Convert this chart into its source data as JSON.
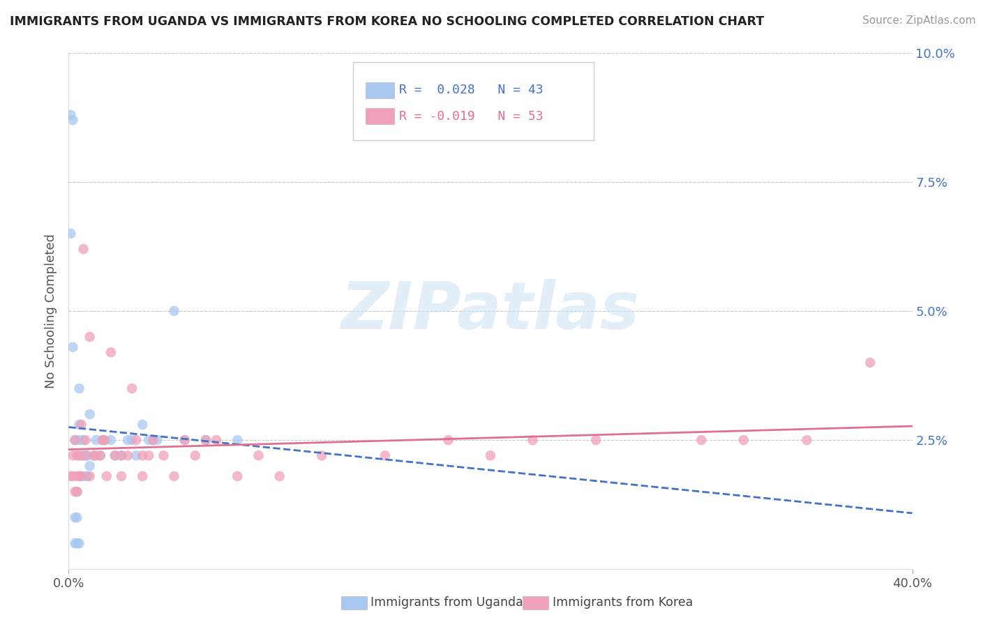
{
  "title": "IMMIGRANTS FROM UGANDA VS IMMIGRANTS FROM KOREA NO SCHOOLING COMPLETED CORRELATION CHART",
  "source": "Source: ZipAtlas.com",
  "ylabel": "No Schooling Completed",
  "xlim": [
    0.0,
    0.4
  ],
  "ylim": [
    0.0,
    0.1
  ],
  "xtick_vals": [
    0.0,
    0.4
  ],
  "yticks_right": [
    0.0,
    0.025,
    0.05,
    0.075,
    0.1
  ],
  "ytick_labels_right": [
    "",
    "2.5%",
    "5.0%",
    "7.5%",
    "10.0%"
  ],
  "legend_line1": "R =  0.028   N = 43",
  "legend_line2": "R = -0.019   N = 53",
  "legend_label_uganda": "Immigrants from Uganda",
  "legend_label_korea": "Immigrants from Korea",
  "color_uganda": "#A8C8F0",
  "color_korea": "#F0A0B8",
  "line_color_uganda": "#4472C4",
  "line_color_korea": "#E07090",
  "watermark_text": "ZIPatlas",
  "uganda_x": [
    0.001,
    0.002,
    0.001,
    0.003,
    0.002,
    0.003,
    0.003,
    0.004,
    0.004,
    0.004,
    0.005,
    0.005,
    0.005,
    0.005,
    0.006,
    0.006,
    0.007,
    0.007,
    0.008,
    0.008,
    0.009,
    0.009,
    0.01,
    0.01,
    0.012,
    0.013,
    0.015,
    0.016,
    0.017,
    0.02,
    0.022,
    0.025,
    0.028,
    0.03,
    0.032,
    0.035,
    0.038,
    0.04,
    0.042,
    0.05,
    0.055,
    0.065,
    0.08
  ],
  "uganda_y": [
    0.088,
    0.087,
    0.065,
    0.005,
    0.043,
    0.01,
    0.025,
    0.005,
    0.01,
    0.015,
    0.025,
    0.028,
    0.005,
    0.035,
    0.022,
    0.018,
    0.022,
    0.025,
    0.018,
    0.022,
    0.018,
    0.022,
    0.02,
    0.03,
    0.022,
    0.025,
    0.022,
    0.025,
    0.025,
    0.025,
    0.022,
    0.022,
    0.025,
    0.025,
    0.022,
    0.028,
    0.025,
    0.025,
    0.025,
    0.05,
    0.025,
    0.025,
    0.025
  ],
  "korea_x": [
    0.001,
    0.002,
    0.002,
    0.003,
    0.003,
    0.004,
    0.004,
    0.004,
    0.005,
    0.005,
    0.006,
    0.006,
    0.007,
    0.008,
    0.008,
    0.01,
    0.01,
    0.012,
    0.013,
    0.015,
    0.016,
    0.017,
    0.018,
    0.02,
    0.022,
    0.025,
    0.025,
    0.028,
    0.03,
    0.032,
    0.035,
    0.035,
    0.038,
    0.04,
    0.045,
    0.05,
    0.055,
    0.06,
    0.065,
    0.07,
    0.08,
    0.09,
    0.1,
    0.12,
    0.15,
    0.18,
    0.2,
    0.22,
    0.25,
    0.3,
    0.32,
    0.35,
    0.38
  ],
  "korea_y": [
    0.018,
    0.018,
    0.022,
    0.015,
    0.025,
    0.018,
    0.022,
    0.015,
    0.018,
    0.022,
    0.018,
    0.028,
    0.062,
    0.022,
    0.025,
    0.018,
    0.045,
    0.022,
    0.022,
    0.022,
    0.025,
    0.025,
    0.018,
    0.042,
    0.022,
    0.018,
    0.022,
    0.022,
    0.035,
    0.025,
    0.018,
    0.022,
    0.022,
    0.025,
    0.022,
    0.018,
    0.025,
    0.022,
    0.025,
    0.025,
    0.018,
    0.022,
    0.018,
    0.022,
    0.022,
    0.025,
    0.022,
    0.025,
    0.025,
    0.025,
    0.025,
    0.025,
    0.04
  ]
}
